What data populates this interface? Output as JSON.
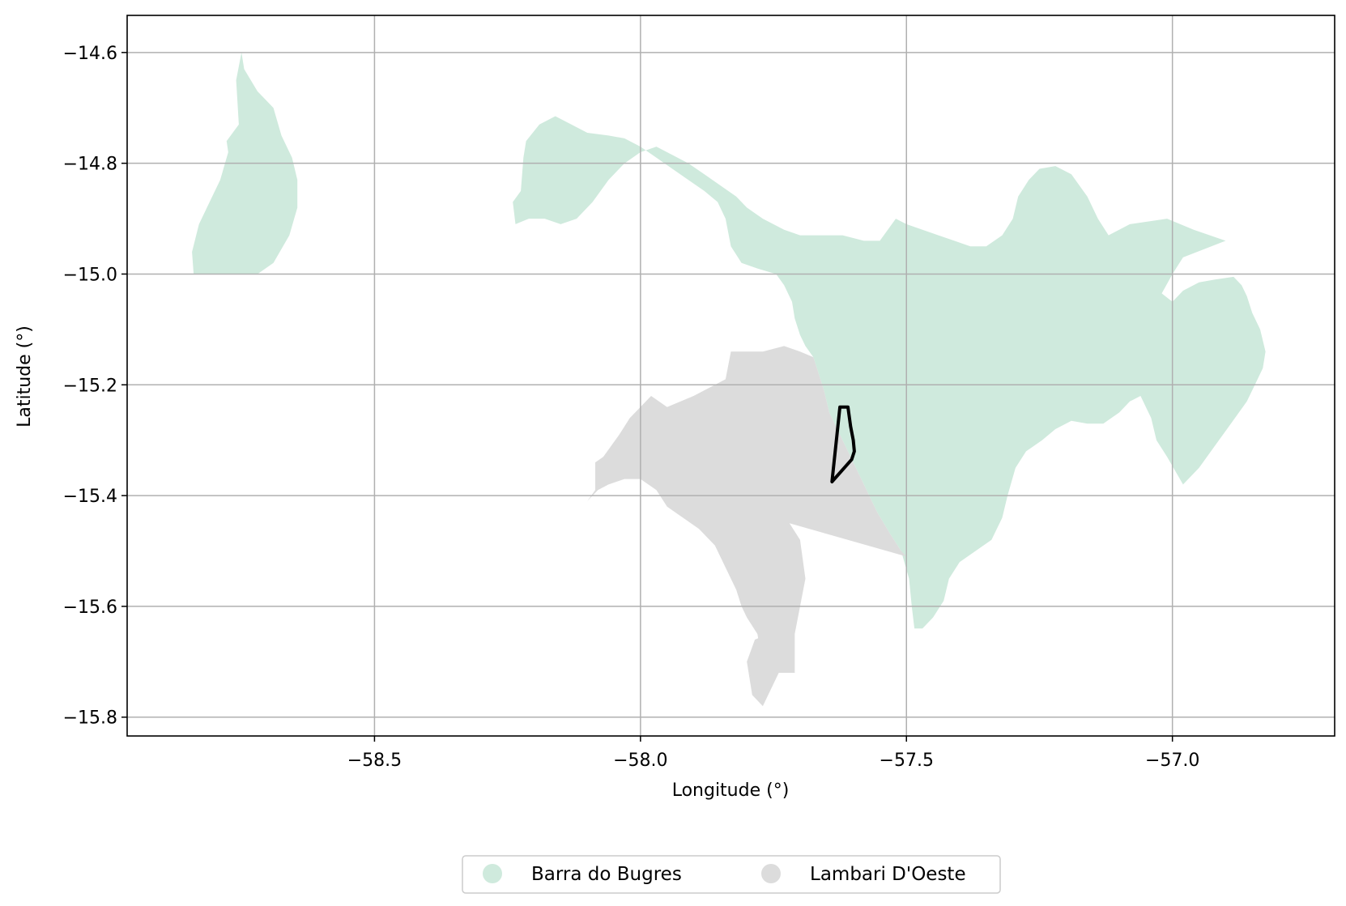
{
  "chart_data": {
    "type": "map",
    "xlabel": "Longitude (°)",
    "ylabel": "Latitude (°)",
    "xlim": [
      -58.965,
      -56.695
    ],
    "ylim": [
      -15.834,
      -14.533
    ],
    "xticks": [
      -58.5,
      -58.0,
      -57.5,
      -57.0
    ],
    "xtick_labels": [
      "−58.5",
      "−58.0",
      "−57.5",
      "−57.0"
    ],
    "yticks": [
      -14.6,
      -14.8,
      -15.0,
      -15.2,
      -15.4,
      -15.6,
      -15.8
    ],
    "ytick_labels": [
      "−14.6",
      "−14.8",
      "−15.0",
      "−15.2",
      "−15.4",
      "−15.6",
      "−15.8"
    ],
    "grid": true,
    "legend_position": "bottom-center",
    "colors": {
      "barra": "#cfeadd",
      "lambari": "#dcdcdc",
      "outline": "#000000",
      "grid": "#b0b0b0"
    },
    "legend": [
      {
        "label": "Barra do Bugres",
        "color": "#cfeadd"
      },
      {
        "label": "Lambari D'Oeste",
        "color": "#dcdcdc"
      }
    ],
    "regions": [
      {
        "name": "Barra do Bugres",
        "color": "#cfeadd",
        "polygons": [
          [
            [
              -58.84,
              -15.0
            ],
            [
              -58.843,
              -14.96
            ],
            [
              -58.83,
              -14.91
            ],
            [
              -58.81,
              -14.87
            ],
            [
              -58.79,
              -14.83
            ],
            [
              -58.775,
              -14.78
            ],
            [
              -58.778,
              -14.76
            ],
            [
              -58.755,
              -14.73
            ],
            [
              -58.76,
              -14.65
            ],
            [
              -58.75,
              -14.6
            ],
            [
              -58.745,
              -14.63
            ],
            [
              -58.72,
              -14.67
            ],
            [
              -58.69,
              -14.7
            ],
            [
              -58.675,
              -14.75
            ],
            [
              -58.655,
              -14.79
            ],
            [
              -58.645,
              -14.83
            ],
            [
              -58.645,
              -14.88
            ],
            [
              -58.66,
              -14.93
            ],
            [
              -58.69,
              -14.98
            ],
            [
              -58.72,
              -15.0
            ]
          ],
          [
            [
              -58.235,
              -14.91
            ],
            [
              -58.24,
              -14.87
            ],
            [
              -58.225,
              -14.85
            ],
            [
              -58.22,
              -14.79
            ],
            [
              -58.215,
              -14.76
            ],
            [
              -58.19,
              -14.73
            ],
            [
              -58.16,
              -14.715
            ],
            [
              -58.13,
              -14.73
            ],
            [
              -58.1,
              -14.745
            ],
            [
              -58.06,
              -14.75
            ],
            [
              -58.03,
              -14.755
            ],
            [
              -58.0,
              -14.77
            ],
            [
              -57.97,
              -14.79
            ],
            [
              -57.94,
              -14.81
            ],
            [
              -57.91,
              -14.83
            ],
            [
              -57.88,
              -14.85
            ],
            [
              -57.855,
              -14.87
            ],
            [
              -57.84,
              -14.9
            ],
            [
              -57.83,
              -14.95
            ],
            [
              -57.81,
              -14.98
            ],
            [
              -57.78,
              -14.99
            ],
            [
              -57.745,
              -15.0
            ],
            [
              -57.73,
              -15.02
            ],
            [
              -57.715,
              -15.05
            ],
            [
              -57.71,
              -15.08
            ],
            [
              -57.7,
              -15.11
            ],
            [
              -57.69,
              -15.13
            ],
            [
              -57.675,
              -15.15
            ],
            [
              -57.665,
              -15.18
            ],
            [
              -57.655,
              -15.21
            ],
            [
              -57.645,
              -15.25
            ],
            [
              -57.625,
              -15.29
            ],
            [
              -57.605,
              -15.33
            ],
            [
              -57.58,
              -15.38
            ],
            [
              -57.555,
              -15.43
            ],
            [
              -57.53,
              -15.47
            ],
            [
              -57.51,
              -15.5
            ],
            [
              -57.495,
              -15.55
            ],
            [
              -57.49,
              -15.6
            ],
            [
              -57.485,
              -15.64
            ],
            [
              -57.47,
              -15.64
            ],
            [
              -57.45,
              -15.62
            ],
            [
              -57.43,
              -15.59
            ],
            [
              -57.42,
              -15.55
            ],
            [
              -57.4,
              -15.52
            ],
            [
              -57.37,
              -15.5
            ],
            [
              -57.34,
              -15.48
            ],
            [
              -57.32,
              -15.44
            ],
            [
              -57.31,
              -15.4
            ],
            [
              -57.295,
              -15.35
            ],
            [
              -57.275,
              -15.32
            ],
            [
              -57.245,
              -15.3
            ],
            [
              -57.22,
              -15.28
            ],
            [
              -57.19,
              -15.265
            ],
            [
              -57.16,
              -15.27
            ],
            [
              -57.13,
              -15.27
            ],
            [
              -57.1,
              -15.25
            ],
            [
              -57.08,
              -15.23
            ],
            [
              -57.06,
              -15.22
            ],
            [
              -57.04,
              -15.26
            ],
            [
              -57.03,
              -15.3
            ],
            [
              -57.01,
              -15.33
            ],
            [
              -56.98,
              -15.38
            ],
            [
              -56.95,
              -15.35
            ],
            [
              -56.92,
              -15.31
            ],
            [
              -56.89,
              -15.27
            ],
            [
              -56.86,
              -15.23
            ],
            [
              -56.845,
              -15.2
            ],
            [
              -56.83,
              -15.17
            ],
            [
              -56.825,
              -15.14
            ],
            [
              -56.835,
              -15.1
            ],
            [
              -56.85,
              -15.07
            ],
            [
              -56.86,
              -15.04
            ],
            [
              -56.87,
              -15.02
            ],
            [
              -56.885,
              -15.005
            ],
            [
              -56.92,
              -15.01
            ],
            [
              -56.95,
              -15.015
            ],
            [
              -56.98,
              -15.03
            ],
            [
              -57.0,
              -15.05
            ],
            [
              -57.02,
              -15.035
            ],
            [
              -57.0,
              -15.0
            ],
            [
              -56.98,
              -14.97
            ],
            [
              -56.9,
              -14.94
            ],
            [
              -56.96,
              -14.92
            ],
            [
              -57.01,
              -14.9
            ],
            [
              -57.08,
              -14.91
            ],
            [
              -57.12,
              -14.93
            ],
            [
              -57.14,
              -14.9
            ],
            [
              -57.16,
              -14.86
            ],
            [
              -57.19,
              -14.82
            ],
            [
              -57.22,
              -14.805
            ],
            [
              -57.25,
              -14.81
            ],
            [
              -57.27,
              -14.83
            ],
            [
              -57.29,
              -14.86
            ],
            [
              -57.3,
              -14.9
            ],
            [
              -57.32,
              -14.93
            ],
            [
              -57.35,
              -14.95
            ],
            [
              -57.38,
              -14.95
            ],
            [
              -57.41,
              -14.94
            ],
            [
              -57.44,
              -14.93
            ],
            [
              -57.47,
              -14.92
            ],
            [
              -57.5,
              -14.91
            ],
            [
              -57.52,
              -14.9
            ],
            [
              -57.55,
              -14.94
            ],
            [
              -57.58,
              -14.94
            ],
            [
              -57.62,
              -14.93
            ],
            [
              -57.66,
              -14.93
            ],
            [
              -57.7,
              -14.93
            ],
            [
              -57.73,
              -14.92
            ],
            [
              -57.77,
              -14.9
            ],
            [
              -57.8,
              -14.88
            ],
            [
              -57.82,
              -14.86
            ],
            [
              -57.85,
              -14.84
            ],
            [
              -57.88,
              -14.82
            ],
            [
              -57.91,
              -14.8
            ],
            [
              -57.94,
              -14.785
            ],
            [
              -57.97,
              -14.77
            ],
            [
              -58.0,
              -14.78
            ],
            [
              -58.03,
              -14.8
            ],
            [
              -58.06,
              -14.83
            ],
            [
              -58.09,
              -14.87
            ],
            [
              -58.12,
              -14.9
            ],
            [
              -58.15,
              -14.91
            ],
            [
              -58.18,
              -14.9
            ],
            [
              -58.21,
              -14.9
            ],
            [
              -58.235,
              -14.91
            ]
          ]
        ]
      },
      {
        "name": "Lambari D'Oeste",
        "color": "#dcdcdc",
        "polygons": [
          [
            [
              -58.1,
              -15.41
            ],
            [
              -58.085,
              -15.39
            ],
            [
              -58.085,
              -15.34
            ],
            [
              -58.07,
              -15.33
            ],
            [
              -58.04,
              -15.29
            ],
            [
              -58.02,
              -15.26
            ],
            [
              -57.98,
              -15.22
            ],
            [
              -57.95,
              -15.24
            ],
            [
              -57.9,
              -15.22
            ],
            [
              -57.84,
              -15.19
            ],
            [
              -57.83,
              -15.14
            ],
            [
              -57.77,
              -15.14
            ],
            [
              -57.73,
              -15.13
            ],
            [
              -57.7,
              -15.14
            ],
            [
              -57.675,
              -15.15
            ],
            [
              -57.665,
              -15.18
            ],
            [
              -57.655,
              -15.21
            ],
            [
              -57.645,
              -15.25
            ],
            [
              -57.625,
              -15.29
            ],
            [
              -57.605,
              -15.33
            ],
            [
              -57.58,
              -15.38
            ],
            [
              -57.555,
              -15.43
            ],
            [
              -57.53,
              -15.47
            ],
            [
              -57.51,
              -15.5
            ],
            [
              -57.5,
              -15.51
            ],
            [
              -57.72,
              -15.45
            ],
            [
              -57.7,
              -15.48
            ],
            [
              -57.69,
              -15.55
            ],
            [
              -57.7,
              -15.6
            ],
            [
              -57.71,
              -15.65
            ],
            [
              -57.71,
              -15.72
            ],
            [
              -57.74,
              -15.72
            ],
            [
              -57.755,
              -15.68
            ],
            [
              -57.775,
              -15.68
            ],
            [
              -57.78,
              -15.65
            ],
            [
              -57.8,
              -15.62
            ],
            [
              -57.81,
              -15.6
            ],
            [
              -57.82,
              -15.57
            ],
            [
              -57.84,
              -15.53
            ],
            [
              -57.86,
              -15.49
            ],
            [
              -57.89,
              -15.46
            ],
            [
              -57.92,
              -15.44
            ],
            [
              -57.95,
              -15.42
            ],
            [
              -57.97,
              -15.39
            ],
            [
              -58.0,
              -15.37
            ],
            [
              -58.03,
              -15.37
            ],
            [
              -58.06,
              -15.38
            ],
            [
              -58.08,
              -15.39
            ],
            [
              -58.1,
              -15.41
            ]
          ],
          [
            [
              -57.71,
              -15.72
            ],
            [
              -57.74,
              -15.72
            ],
            [
              -57.77,
              -15.78
            ],
            [
              -57.79,
              -15.76
            ],
            [
              -57.8,
              -15.7
            ],
            [
              -57.785,
              -15.66
            ],
            [
              -57.76,
              -15.65
            ],
            [
              -57.72,
              -15.66
            ],
            [
              -57.71,
              -15.72
            ]
          ]
        ]
      }
    ],
    "highlight_outline": [
      [
        -57.64,
        -15.375
      ],
      [
        -57.625,
        -15.24
      ],
      [
        -57.61,
        -15.24
      ],
      [
        -57.605,
        -15.275
      ],
      [
        -57.6,
        -15.3
      ],
      [
        -57.598,
        -15.32
      ],
      [
        -57.603,
        -15.335
      ],
      [
        -57.64,
        -15.375
      ]
    ]
  }
}
